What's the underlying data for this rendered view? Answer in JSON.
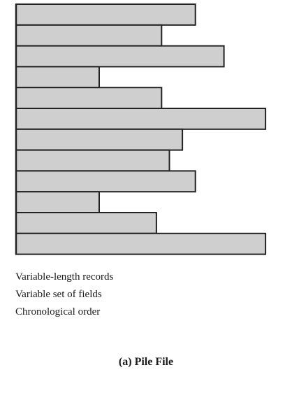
{
  "figure": {
    "records": [
      {
        "relative_length": 0.69
      },
      {
        "relative_length": 0.56
      },
      {
        "relative_length": 0.8
      },
      {
        "relative_length": 0.32
      },
      {
        "relative_length": 0.56
      },
      {
        "relative_length": 0.96
      },
      {
        "relative_length": 0.64
      },
      {
        "relative_length": 0.59
      },
      {
        "relative_length": 0.69
      },
      {
        "relative_length": 0.32
      },
      {
        "relative_length": 0.54
      },
      {
        "relative_length": 0.96
      }
    ],
    "record_fill": "#cfcfcf",
    "record_stroke": "#222222",
    "notes": [
      "Variable-length records",
      "Variable set of fields",
      "Chronological order"
    ],
    "caption": "(a) Pile File"
  }
}
